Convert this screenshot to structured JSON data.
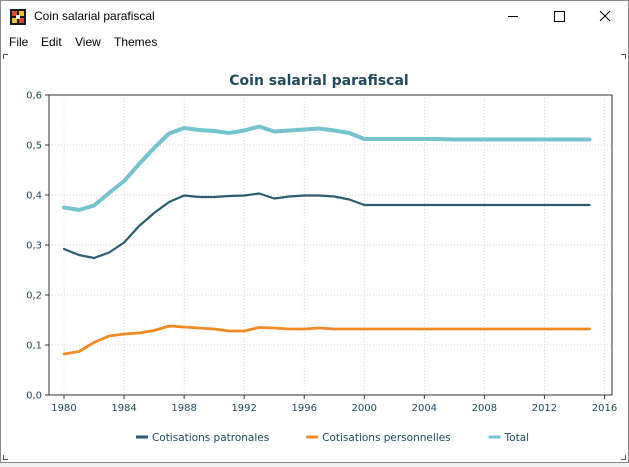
{
  "window": {
    "title": "Coin salarial parafiscal",
    "controls": [
      "minimize",
      "maximize",
      "close"
    ]
  },
  "menu": [
    "File",
    "Edit",
    "View",
    "Themes"
  ],
  "chart_data": {
    "type": "line",
    "title": "Coin salarial parafiscal",
    "xlabel": "",
    "ylabel": "",
    "xlim": [
      1979,
      2016.5
    ],
    "ylim": [
      0,
      0.6
    ],
    "x_ticks": [
      1980,
      1984,
      1988,
      1992,
      1996,
      2000,
      2004,
      2008,
      2012,
      2016
    ],
    "y_ticks": [
      "0,0",
      "0,1",
      "0,2",
      "0,3",
      "0,4",
      "0,5",
      "0,6"
    ],
    "grid": true,
    "legend_position": "bottom",
    "x": [
      1980,
      1981,
      1982,
      1983,
      1984,
      1985,
      1986,
      1987,
      1988,
      1989,
      1990,
      1991,
      1992,
      1993,
      1994,
      1995,
      1996,
      1997,
      1998,
      1999,
      2000,
      2001,
      2002,
      2003,
      2004,
      2005,
      2006,
      2007,
      2008,
      2009,
      2010,
      2011,
      2012,
      2013,
      2014,
      2015
    ],
    "series": [
      {
        "name": "Cotisations patronales",
        "color": "#2a5d70",
        "width": 2.2,
        "values": [
          0.292,
          0.28,
          0.274,
          0.285,
          0.305,
          0.338,
          0.364,
          0.386,
          0.399,
          0.396,
          0.396,
          0.398,
          0.399,
          0.403,
          0.393,
          0.397,
          0.399,
          0.399,
          0.397,
          0.391,
          0.38,
          0.38,
          0.38,
          0.38,
          0.38,
          0.38,
          0.38,
          0.38,
          0.38,
          0.38,
          0.38,
          0.38,
          0.38,
          0.38,
          0.38,
          0.38
        ]
      },
      {
        "name": "Cotisations personnelles",
        "color": "#f08a24",
        "width": 2.8,
        "values": [
          0.082,
          0.087,
          0.105,
          0.118,
          0.122,
          0.124,
          0.129,
          0.138,
          0.136,
          0.134,
          0.132,
          0.128,
          0.128,
          0.135,
          0.134,
          0.132,
          0.132,
          0.134,
          0.132,
          0.132,
          0.132,
          0.132,
          0.132,
          0.132,
          0.132,
          0.132,
          0.132,
          0.132,
          0.132,
          0.132,
          0.132,
          0.132,
          0.132,
          0.132,
          0.132,
          0.132
        ]
      },
      {
        "name": "Total",
        "color": "#74c3cf",
        "width": 4,
        "values": [
          0.375,
          0.37,
          0.379,
          0.404,
          0.428,
          0.462,
          0.494,
          0.523,
          0.534,
          0.53,
          0.528,
          0.524,
          0.529,
          0.537,
          0.527,
          0.529,
          0.531,
          0.533,
          0.529,
          0.524,
          0.512,
          0.512,
          0.512,
          0.512,
          0.512,
          0.512,
          0.511,
          0.511,
          0.511,
          0.511,
          0.511,
          0.511,
          0.511,
          0.511,
          0.511,
          0.511
        ]
      }
    ]
  }
}
